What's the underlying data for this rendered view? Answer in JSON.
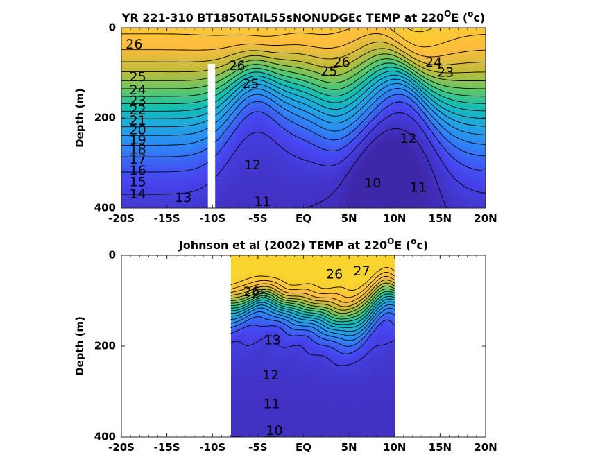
{
  "chart_data": [
    {
      "type": "contour",
      "title_parts": {
        "main": "YR 221-310 BT1850TAIL55sNONUDGEc TEMP at 220",
        "deg": "O",
        "mid": "E (",
        "unit_sup": "o",
        "end": "c)"
      },
      "ylabel": "Depth (m)",
      "xlim": [
        -20,
        20
      ],
      "ylim": [
        0,
        400
      ],
      "y_reversed": true,
      "x_ticks": [
        {
          "v": -20,
          "label": "-20S"
        },
        {
          "v": -15,
          "label": "-15S"
        },
        {
          "v": -10,
          "label": "-10S"
        },
        {
          "v": -5,
          "label": "-5S"
        },
        {
          "v": 0,
          "label": "EQ"
        },
        {
          "v": 5,
          "label": "5N"
        },
        {
          "v": 10,
          "label": "10N"
        },
        {
          "v": 15,
          "label": "15N"
        },
        {
          "v": 20,
          "label": "20N"
        }
      ],
      "y_ticks": [
        {
          "v": 0,
          "label": "0"
        },
        {
          "v": 200,
          "label": "200"
        },
        {
          "v": 400,
          "label": "400"
        }
      ],
      "data_x_range": [
        -20,
        20
      ],
      "missing_column": {
        "lat_range": [
          -10.5,
          -9.7
        ],
        "depth_top": 80
      },
      "contour_levels": [
        10,
        11,
        12,
        13,
        14,
        15,
        16,
        17,
        18,
        19,
        20,
        21,
        22,
        23,
        24,
        25,
        26,
        27
      ],
      "contour_labels": [
        {
          "text": "26",
          "lat": -18.6,
          "depth": 38
        },
        {
          "text": "25",
          "lat": -18.2,
          "depth": 110
        },
        {
          "text": "24",
          "lat": -18.2,
          "depth": 139
        },
        {
          "text": "23",
          "lat": -18.2,
          "depth": 163
        },
        {
          "text": "22",
          "lat": -18.2,
          "depth": 184
        },
        {
          "text": "21",
          "lat": -18.2,
          "depth": 207
        },
        {
          "text": "20",
          "lat": -18.2,
          "depth": 228
        },
        {
          "text": "19",
          "lat": -18.2,
          "depth": 250
        },
        {
          "text": "18",
          "lat": -18.2,
          "depth": 271
        },
        {
          "text": "17",
          "lat": -18.2,
          "depth": 293
        },
        {
          "text": "16",
          "lat": -18.2,
          "depth": 318
        },
        {
          "text": "15",
          "lat": -18.2,
          "depth": 343
        },
        {
          "text": "14",
          "lat": -18.2,
          "depth": 370
        },
        {
          "text": "13",
          "lat": -13.2,
          "depth": 378
        },
        {
          "text": "26",
          "lat": -7.3,
          "depth": 85
        },
        {
          "text": "25",
          "lat": -5.8,
          "depth": 125
        },
        {
          "text": "12",
          "lat": -5.6,
          "depth": 305
        },
        {
          "text": "11",
          "lat": -4.5,
          "depth": 387
        },
        {
          "text": "26",
          "lat": 4.2,
          "depth": 78
        },
        {
          "text": "25",
          "lat": 2.8,
          "depth": 98
        },
        {
          "text": "24",
          "lat": 14.3,
          "depth": 78
        },
        {
          "text": "23",
          "lat": 15.6,
          "depth": 100
        },
        {
          "text": "12",
          "lat": 11.5,
          "depth": 247
        },
        {
          "text": "10",
          "lat": 7.6,
          "depth": 345
        },
        {
          "text": "11",
          "lat": 12.6,
          "depth": 355
        }
      ]
    },
    {
      "type": "contour",
      "title_parts": {
        "main": "Johnson et al (2002) TEMP at 220",
        "deg": "O",
        "mid": "E (",
        "unit_sup": "o",
        "end": "c)"
      },
      "ylabel": "Depth (m)",
      "xlim": [
        -20,
        20
      ],
      "ylim": [
        0,
        400
      ],
      "y_reversed": true,
      "x_ticks": [
        {
          "v": -20,
          "label": "-20S"
        },
        {
          "v": -15,
          "label": "-15S"
        },
        {
          "v": -10,
          "label": "-10S"
        },
        {
          "v": -5,
          "label": "-5S"
        },
        {
          "v": 0,
          "label": "EQ"
        },
        {
          "v": 5,
          "label": "5N"
        },
        {
          "v": 10,
          "label": "10N"
        },
        {
          "v": 15,
          "label": "15N"
        },
        {
          "v": 20,
          "label": "20N"
        }
      ],
      "y_ticks": [
        {
          "v": 0,
          "label": "0"
        },
        {
          "v": 200,
          "label": "200"
        },
        {
          "v": 400,
          "label": "400"
        }
      ],
      "data_x_range": [
        -8,
        10
      ],
      "contour_levels": [
        10,
        11,
        12,
        13,
        14,
        15,
        16,
        17,
        18,
        19,
        20,
        21,
        22,
        23,
        24,
        25,
        26,
        27
      ],
      "contour_labels": [
        {
          "text": "26",
          "lat": -5.7,
          "depth": 82
        },
        {
          "text": "25",
          "lat": -4.8,
          "depth": 86
        },
        {
          "text": "26",
          "lat": 3.4,
          "depth": 43
        },
        {
          "text": "27",
          "lat": 6.4,
          "depth": 36
        },
        {
          "text": "13",
          "lat": -3.4,
          "depth": 188
        },
        {
          "text": "12",
          "lat": -3.6,
          "depth": 265
        },
        {
          "text": "11",
          "lat": -3.5,
          "depth": 328
        },
        {
          "text": "10",
          "lat": -3.2,
          "depth": 387
        }
      ]
    }
  ],
  "colors": {
    "colormap": [
      "#3e26a8",
      "#4745f0",
      "#2e87f7",
      "#1fa9e0",
      "#14beb4",
      "#5cc86a",
      "#bebb3c",
      "#fdbd3e",
      "#f9d42f"
    ],
    "missing": "#ffffff"
  }
}
